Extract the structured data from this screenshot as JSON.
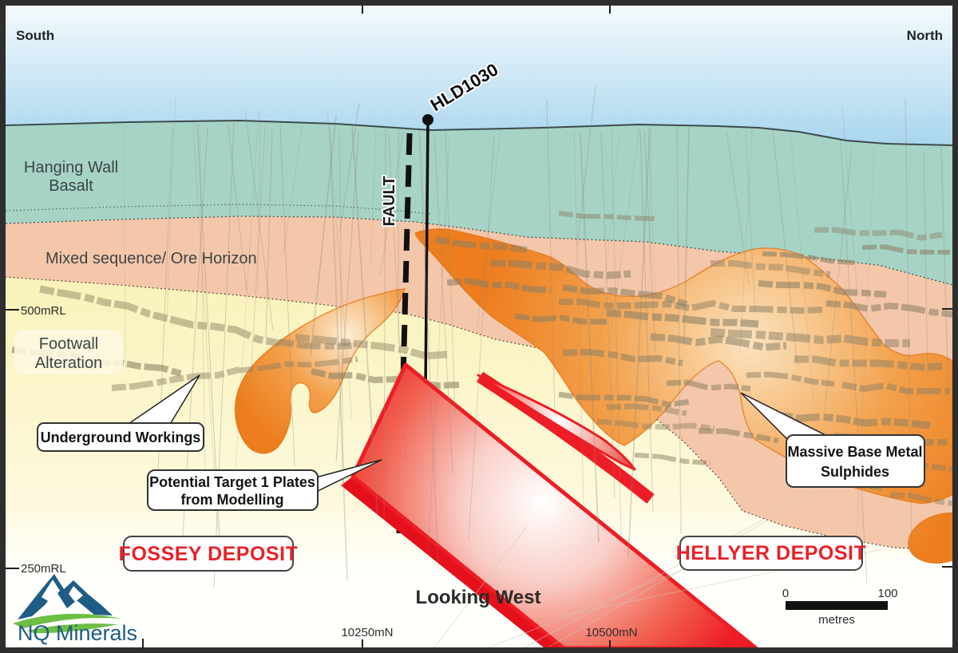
{
  "orientation": {
    "south": "South",
    "north": "North"
  },
  "view": {
    "looking": "Looking West"
  },
  "strata": {
    "hanging_wall": {
      "line1": "Hanging Wall",
      "line2": "Basalt"
    },
    "mixed_sequence": "Mixed sequence/ Ore Horizon",
    "footwall": {
      "line1": "Footwall",
      "line2": "Alteration"
    }
  },
  "annotations": {
    "drillhole": "HLD1030",
    "fault": "FAULT",
    "underground_workings": "Underground Workings",
    "potential_target": {
      "line1": "Potential Target 1 Plates",
      "line2": "from Modelling"
    },
    "massive_sulphides": {
      "line1": "Massive Base Metal",
      "line2": "Sulphides"
    }
  },
  "deposits": {
    "fossey": "FOSSEY DEPOSIT",
    "hellyer": "HELLYER DEPOSIT"
  },
  "axis": {
    "rl_500": "500mRL",
    "rl_250": "250mRL",
    "n_10250": "10250mN",
    "n_10500": "10500mN"
  },
  "scale_bar": {
    "start": "0",
    "end": "100",
    "unit": "metres"
  },
  "logo": {
    "company": "NQ Minerals"
  },
  "colors": {
    "frame": "#2e2e2e",
    "sky_top": "#f4fafd",
    "sky_bottom": "#a9d6ee",
    "basalt": "#a6d3c5",
    "ore_horizon": "#f5c7aa",
    "footwall_top": "#f9f2b8",
    "footwall_bottom": "#fffffc",
    "sulphide_edge": "#ed7d1d",
    "sulphide_mid": "#f3a14c",
    "sulphide_core": "#fbe3c0",
    "plate_red": "#ee1d25",
    "plate_dark": "#e5101b",
    "workings": "#8b7f63",
    "drill": "#8e887c",
    "text_dark": "#3d4447",
    "callout_text": "#141414",
    "deposit_red": "#e82127",
    "logo_blue": "#1f5c86",
    "logo_green": "#6cbe45",
    "surface_line": "#3f4a4d"
  }
}
